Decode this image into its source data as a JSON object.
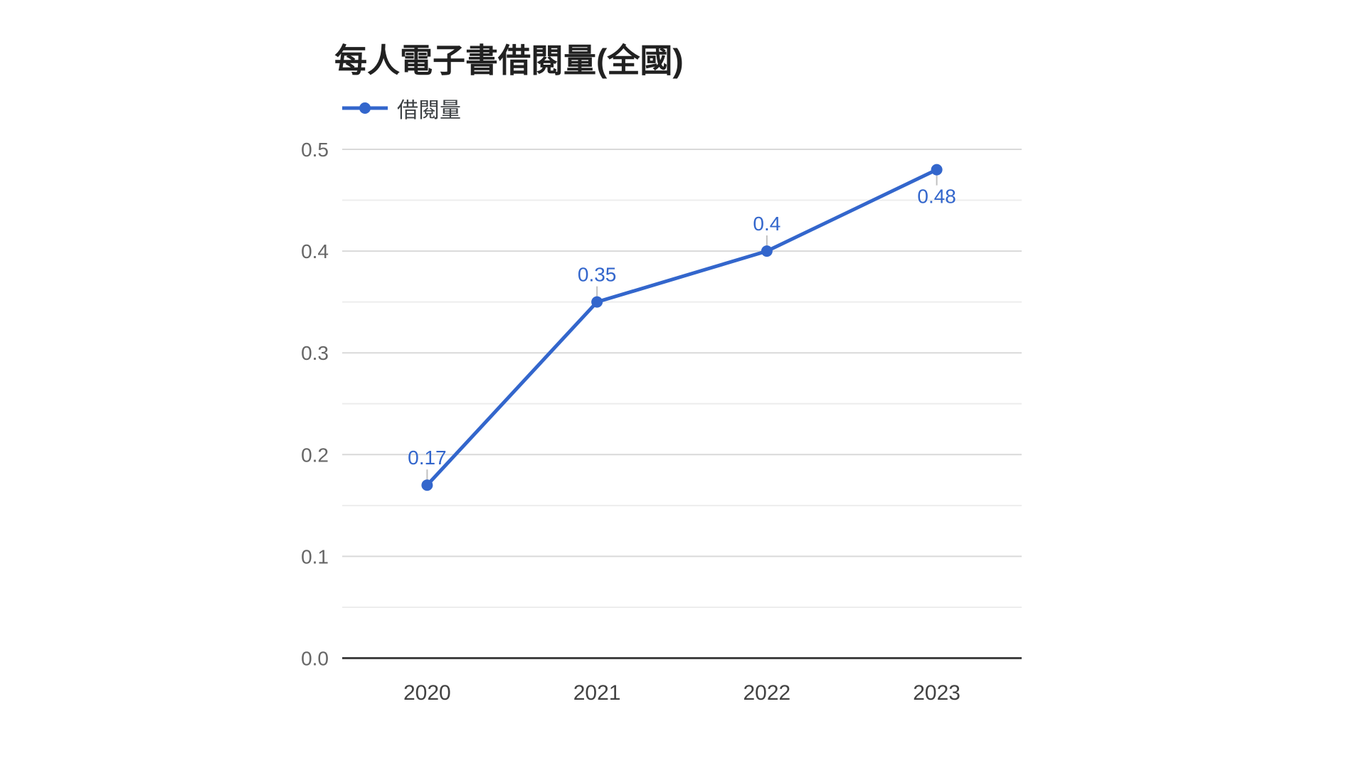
{
  "colors": {
    "background": "#ffffff",
    "accent": "#3366cc",
    "major_gridline": "#d9d9d9",
    "minor_gridline": "#ededed",
    "axis_baseline": "#424242",
    "y_tick_label": "#666666",
    "x_tick_label": "#424242",
    "title": "#212121",
    "legend_text": "#3c4043",
    "stem": "#c0c0c0"
  },
  "chart_data": {
    "type": "line",
    "title": "每人電子書借閱量(全國)",
    "categories": [
      "2020",
      "2021",
      "2022",
      "2023"
    ],
    "series": [
      {
        "name": "借閱量",
        "values": [
          0.17,
          0.35,
          0.4,
          0.48
        ],
        "point_labels": [
          "0.17",
          "0.35",
          "0.4",
          "0.48"
        ]
      }
    ],
    "xlabel": "",
    "ylabel": "",
    "ylim": [
      0,
      0.5
    ],
    "y_tick_labels": [
      "0.0",
      "0.1",
      "0.2",
      "0.3",
      "0.4",
      "0.5"
    ],
    "y_minor_step": 0.05,
    "grid": true,
    "legend_position": "top-left",
    "legend_marker": "line-dot"
  }
}
